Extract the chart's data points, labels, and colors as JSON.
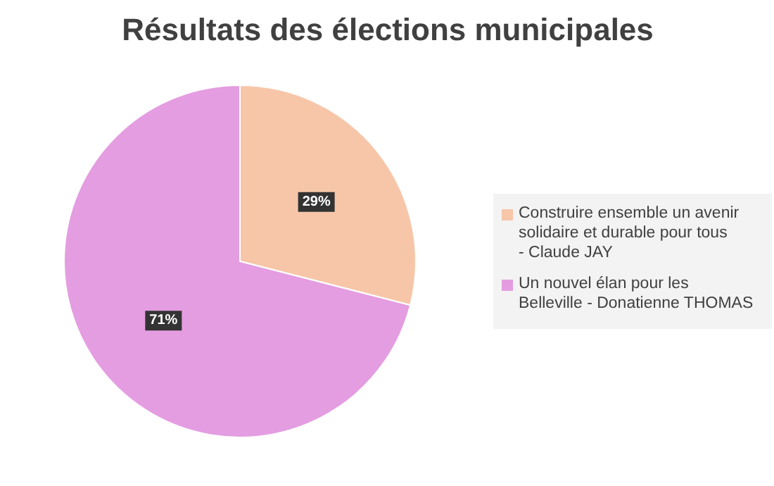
{
  "chart_data": {
    "type": "pie",
    "title": "Résultats des élections municipales",
    "categories": [
      "Construire ensemble un avenir solidaire et durable pour tous - Claude JAY",
      "Un nouvel élan pour les Belleville - Donatienne THOMAS"
    ],
    "values": [
      29,
      71
    ],
    "colors": [
      "#f7c6a9",
      "#e49de1"
    ],
    "value_labels": [
      "29%",
      "71%"
    ],
    "legend": "right"
  }
}
